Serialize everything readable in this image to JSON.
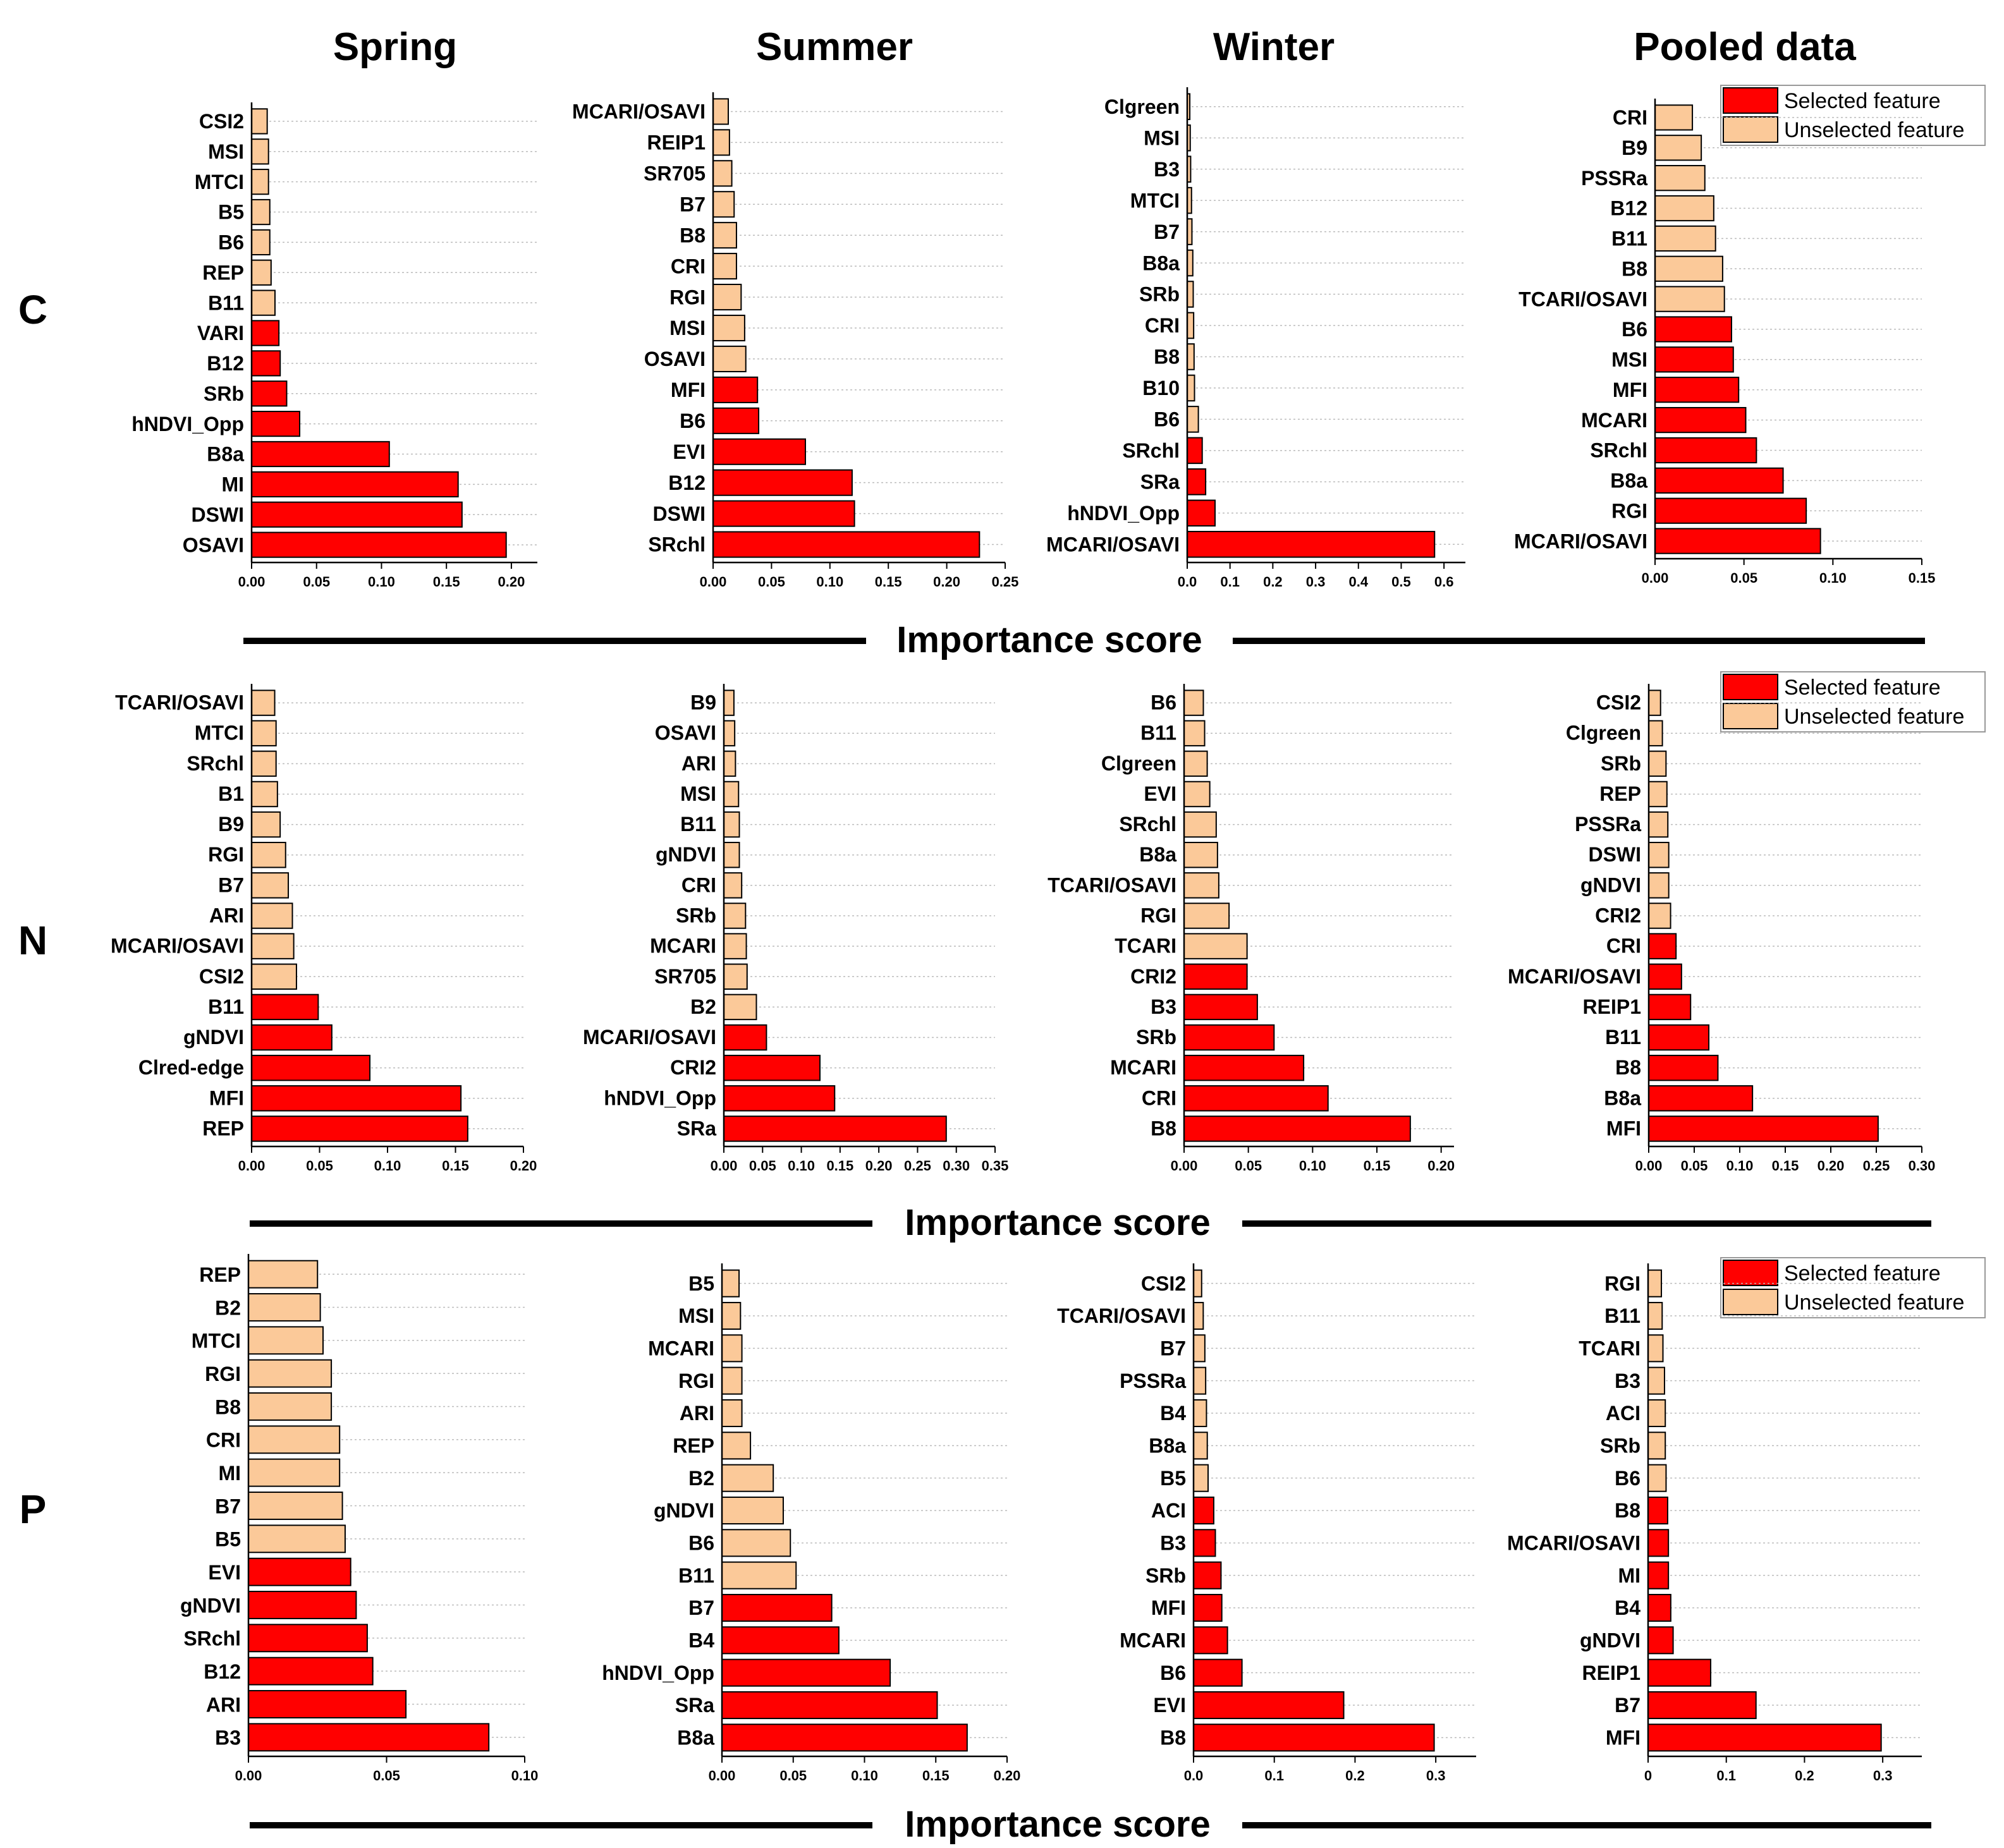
{
  "colors": {
    "selected": "#ff0000",
    "unselected": "#fbc999",
    "axis": "#000000",
    "grid": "#bbbbbb"
  },
  "column_titles": [
    "Spring",
    "Summer",
    "Winter",
    "Pooled data"
  ],
  "row_labels": [
    "C",
    "N",
    "P"
  ],
  "axis_title": "Importance score",
  "legend": {
    "selected": "Selected feature",
    "unselected": "Unselected feature"
  },
  "chart_data": [
    {
      "type": "bar",
      "orientation": "horizontal",
      "row": "C",
      "season": "Spring",
      "xlim": [
        0,
        0.22
      ],
      "xticks": [
        "0.00",
        "0.05",
        "0.10",
        "0.15",
        "0.20"
      ],
      "xtick_values": [
        0,
        0.05,
        0.1,
        0.15,
        0.2
      ],
      "categories": [
        "CSI2",
        "MSI",
        "MTCI",
        "B5",
        "B6",
        "REP",
        "B11",
        "VARI",
        "B12",
        "SRb",
        "hNDVI_Opp",
        "B8a",
        "MI",
        "DSWI",
        "OSAVI"
      ],
      "values": [
        0.012,
        0.013,
        0.013,
        0.014,
        0.014,
        0.015,
        0.018,
        0.021,
        0.022,
        0.027,
        0.037,
        0.106,
        0.159,
        0.162,
        0.196
      ],
      "selected": [
        false,
        false,
        false,
        false,
        false,
        false,
        false,
        true,
        true,
        true,
        true,
        true,
        true,
        true,
        true
      ]
    },
    {
      "type": "bar",
      "orientation": "horizontal",
      "row": "C",
      "season": "Summer",
      "xlim": [
        0,
        0.25
      ],
      "xticks": [
        "0.00",
        "0.05",
        "0.10",
        "0.15",
        "0.20",
        "0.25"
      ],
      "xtick_values": [
        0,
        0.05,
        0.1,
        0.15,
        0.2,
        0.25
      ],
      "categories": [
        "MCARI/OSAVI",
        "REIP1",
        "SR705",
        "B7",
        "B8",
        "CRI",
        "RGI",
        "MSI",
        "OSAVI",
        "MFI",
        "B6",
        "EVI",
        "B12",
        "DSWI",
        "SRchl"
      ],
      "values": [
        0.013,
        0.014,
        0.016,
        0.018,
        0.02,
        0.02,
        0.024,
        0.027,
        0.028,
        0.038,
        0.039,
        0.079,
        0.119,
        0.121,
        0.228
      ],
      "selected": [
        false,
        false,
        false,
        false,
        false,
        false,
        false,
        false,
        false,
        true,
        true,
        true,
        true,
        true,
        true
      ]
    },
    {
      "type": "bar",
      "orientation": "horizontal",
      "row": "C",
      "season": "Winter",
      "xlim": [
        0,
        0.65
      ],
      "xticks": [
        "0.0",
        "0.1",
        "0.2",
        "0.3",
        "0.4",
        "0.5",
        "0.6"
      ],
      "xtick_values": [
        0,
        0.1,
        0.2,
        0.3,
        0.4,
        0.5,
        0.6
      ],
      "categories": [
        "Clgreen",
        "MSI",
        "B3",
        "MTCI",
        "B7",
        "B8a",
        "SRb",
        "CRI",
        "B8",
        "B10",
        "B6",
        "SRchl",
        "SRa",
        "hNDVI_Opp",
        "MCARI/OSAVI"
      ],
      "values": [
        0.006,
        0.007,
        0.008,
        0.01,
        0.011,
        0.013,
        0.014,
        0.015,
        0.016,
        0.017,
        0.026,
        0.035,
        0.043,
        0.065,
        0.578
      ],
      "selected": [
        false,
        false,
        false,
        false,
        false,
        false,
        false,
        false,
        false,
        false,
        false,
        true,
        true,
        true,
        true
      ]
    },
    {
      "type": "bar",
      "orientation": "horizontal",
      "row": "C",
      "season": "Pooled data",
      "xlim": [
        0,
        0.15
      ],
      "xticks": [
        "0.00",
        "0.05",
        "0.10",
        "0.15"
      ],
      "xtick_values": [
        0,
        0.05,
        0.1,
        0.15
      ],
      "categories": [
        "CRI",
        "B9",
        "PSSRa",
        "B12",
        "B11",
        "B8",
        "TCARI/OSAVI",
        "B6",
        "MSI",
        "MFI",
        "MCARI",
        "SRchl",
        "B8a",
        "RGI",
        "MCARI/OSAVI"
      ],
      "values": [
        0.021,
        0.026,
        0.028,
        0.033,
        0.034,
        0.038,
        0.039,
        0.043,
        0.044,
        0.047,
        0.051,
        0.057,
        0.072,
        0.085,
        0.093
      ],
      "selected": [
        false,
        false,
        false,
        false,
        false,
        false,
        false,
        true,
        true,
        true,
        true,
        true,
        true,
        true,
        true
      ]
    },
    {
      "type": "bar",
      "orientation": "horizontal",
      "row": "N",
      "season": "Spring",
      "xlim": [
        0,
        0.2
      ],
      "xticks": [
        "0.00",
        "0.05",
        "0.10",
        "0.15",
        "0.20"
      ],
      "xtick_values": [
        0,
        0.05,
        0.1,
        0.15,
        0.2
      ],
      "categories": [
        "TCARI/OSAVI",
        "MTCI",
        "SRchl",
        "B1",
        "B9",
        "RGI",
        "B7",
        "ARI",
        "MCARI/OSAVI",
        "CSI2",
        "B11",
        "gNDVI",
        "Clred-edge",
        "MFI",
        "REP"
      ],
      "values": [
        0.017,
        0.018,
        0.018,
        0.019,
        0.021,
        0.025,
        0.027,
        0.03,
        0.031,
        0.033,
        0.049,
        0.059,
        0.087,
        0.154,
        0.159
      ],
      "selected": [
        false,
        false,
        false,
        false,
        false,
        false,
        false,
        false,
        false,
        false,
        true,
        true,
        true,
        true,
        true
      ]
    },
    {
      "type": "bar",
      "orientation": "horizontal",
      "row": "N",
      "season": "Summer",
      "xlim": [
        0,
        0.35
      ],
      "xticks": [
        "0.00",
        "0.05",
        "0.10",
        "0.15",
        "0.20",
        "0.25",
        "0.30",
        "0.35"
      ],
      "xtick_values": [
        0,
        0.05,
        0.1,
        0.15,
        0.2,
        0.25,
        0.3,
        0.35
      ],
      "categories": [
        "B9",
        "OSAVI",
        "ARI",
        "MSI",
        "B11",
        "gNDVI",
        "CRI",
        "SRb",
        "MCARI",
        "SR705",
        "B2",
        "MCARI/OSAVI",
        "CRI2",
        "hNDVI_Opp",
        "SRa"
      ],
      "values": [
        0.013,
        0.014,
        0.015,
        0.019,
        0.02,
        0.02,
        0.023,
        0.028,
        0.029,
        0.03,
        0.042,
        0.055,
        0.124,
        0.143,
        0.287
      ],
      "selected": [
        false,
        false,
        false,
        false,
        false,
        false,
        false,
        false,
        false,
        false,
        false,
        true,
        true,
        true,
        true
      ]
    },
    {
      "type": "bar",
      "orientation": "horizontal",
      "row": "N",
      "season": "Winter",
      "xlim": [
        0,
        0.21
      ],
      "xticks": [
        "0.00",
        "0.05",
        "0.10",
        "0.15",
        "0.20"
      ],
      "xtick_values": [
        0,
        0.05,
        0.1,
        0.15,
        0.2
      ],
      "categories": [
        "B6",
        "B11",
        "Clgreen",
        "EVI",
        "SRchl",
        "B8a",
        "TCARI/OSAVI",
        "RGI",
        "TCARI",
        "CRI2",
        "B3",
        "SRb",
        "MCARI",
        "CRI",
        "B8"
      ],
      "values": [
        0.015,
        0.016,
        0.018,
        0.02,
        0.025,
        0.026,
        0.027,
        0.035,
        0.049,
        0.049,
        0.057,
        0.07,
        0.093,
        0.112,
        0.176
      ],
      "selected": [
        false,
        false,
        false,
        false,
        false,
        false,
        false,
        false,
        false,
        true,
        true,
        true,
        true,
        true,
        true
      ]
    },
    {
      "type": "bar",
      "orientation": "horizontal",
      "row": "N",
      "season": "Pooled data",
      "xlim": [
        0,
        0.3
      ],
      "xticks": [
        "0.00",
        "0.05",
        "0.10",
        "0.15",
        "0.20",
        "0.25",
        "0.30"
      ],
      "xtick_values": [
        0,
        0.05,
        0.1,
        0.15,
        0.2,
        0.25,
        0.3
      ],
      "categories": [
        "CSI2",
        "Clgreen",
        "SRb",
        "REP",
        "PSSRa",
        "DSWI",
        "gNDVI",
        "CRI2",
        "CRI",
        "MCARI/OSAVI",
        "REIP1",
        "B11",
        "B8",
        "B8a",
        "MFI"
      ],
      "values": [
        0.013,
        0.015,
        0.019,
        0.02,
        0.021,
        0.022,
        0.022,
        0.024,
        0.03,
        0.036,
        0.046,
        0.066,
        0.076,
        0.114,
        0.252
      ],
      "selected": [
        false,
        false,
        false,
        false,
        false,
        false,
        false,
        false,
        true,
        true,
        true,
        true,
        true,
        true,
        true
      ]
    },
    {
      "type": "bar",
      "orientation": "horizontal",
      "row": "P",
      "season": "Spring",
      "xlim": [
        0,
        0.1
      ],
      "xticks": [
        "0.00",
        "0.05",
        "0.10"
      ],
      "xtick_values": [
        0,
        0.05,
        0.1
      ],
      "categories": [
        "REP",
        "B2",
        "MTCI",
        "RGI",
        "B8",
        "CRI",
        "MI",
        "B7",
        "B5",
        "EVI",
        "gNDVI",
        "SRchl",
        "B12",
        "ARI",
        "B3"
      ],
      "values": [
        0.025,
        0.026,
        0.027,
        0.03,
        0.03,
        0.033,
        0.033,
        0.034,
        0.035,
        0.037,
        0.039,
        0.043,
        0.045,
        0.057,
        0.087
      ],
      "selected": [
        false,
        false,
        false,
        false,
        false,
        false,
        false,
        false,
        false,
        true,
        true,
        true,
        true,
        true,
        true
      ]
    },
    {
      "type": "bar",
      "orientation": "horizontal",
      "row": "P",
      "season": "Summer",
      "xlim": [
        0,
        0.2
      ],
      "xticks": [
        "0.00",
        "0.05",
        "0.10",
        "0.15",
        "0.20"
      ],
      "xtick_values": [
        0,
        0.05,
        0.1,
        0.15,
        0.2
      ],
      "categories": [
        "B5",
        "MSI",
        "MCARI",
        "RGI",
        "ARI",
        "REP",
        "B2",
        "gNDVI",
        "B6",
        "B11",
        "B7",
        "B4",
        "hNDVI_Opp",
        "SRa",
        "B8a"
      ],
      "values": [
        0.012,
        0.013,
        0.014,
        0.014,
        0.014,
        0.02,
        0.036,
        0.043,
        0.048,
        0.052,
        0.077,
        0.082,
        0.118,
        0.151,
        0.172
      ],
      "selected": [
        false,
        false,
        false,
        false,
        false,
        false,
        false,
        false,
        false,
        false,
        true,
        true,
        true,
        true,
        true
      ]
    },
    {
      "type": "bar",
      "orientation": "horizontal",
      "row": "P",
      "season": "Winter",
      "xlim": [
        0,
        0.35
      ],
      "xticks": [
        "0.0",
        "0.1",
        "0.2",
        "0.3"
      ],
      "xtick_values": [
        0,
        0.1,
        0.2,
        0.3
      ],
      "categories": [
        "CSI2",
        "TCARI/OSAVI",
        "B7",
        "PSSRa",
        "B4",
        "B8a",
        "B5",
        "ACI",
        "B3",
        "SRb",
        "MFI",
        "MCARI",
        "B6",
        "EVI",
        "B8"
      ],
      "values": [
        0.01,
        0.012,
        0.014,
        0.015,
        0.016,
        0.017,
        0.018,
        0.025,
        0.027,
        0.034,
        0.035,
        0.042,
        0.06,
        0.186,
        0.298
      ],
      "selected": [
        false,
        false,
        false,
        false,
        false,
        false,
        false,
        true,
        true,
        true,
        true,
        true,
        true,
        true,
        true
      ]
    },
    {
      "type": "bar",
      "orientation": "horizontal",
      "row": "P",
      "season": "Pooled data",
      "xlim": [
        0,
        0.35
      ],
      "xticks": [
        "0",
        "0.1",
        "0.2",
        "0.3"
      ],
      "xtick_values": [
        0,
        0.1,
        0.2,
        0.3
      ],
      "categories": [
        "RGI",
        "B11",
        "TCARI",
        "B3",
        "ACI",
        "SRb",
        "B6",
        "B8",
        "MCARI/OSAVI",
        "MI",
        "B4",
        "gNDVI",
        "REIP1",
        "B7",
        "MFI"
      ],
      "values": [
        0.017,
        0.018,
        0.019,
        0.021,
        0.022,
        0.022,
        0.023,
        0.025,
        0.026,
        0.026,
        0.029,
        0.032,
        0.08,
        0.138,
        0.298
      ],
      "selected": [
        false,
        false,
        false,
        false,
        false,
        false,
        false,
        true,
        true,
        true,
        true,
        true,
        true,
        true,
        true
      ]
    }
  ]
}
